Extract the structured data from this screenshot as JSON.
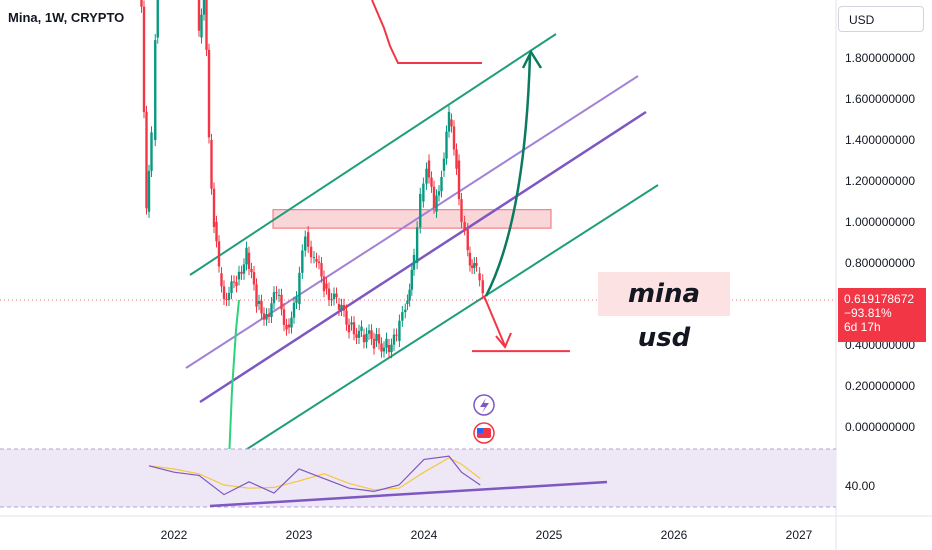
{
  "header": {
    "symbol": "Mina, 1W, CRYPTO"
  },
  "scale": {
    "currency": "USD"
  },
  "price_tag": {
    "price": "0.619178672",
    "change": "−93.81%",
    "countdown": "6d 17h"
  },
  "annotation": {
    "text": "mina usd"
  },
  "colors": {
    "candle_up": "#089981",
    "candle_down": "#f23645",
    "channel_green": "#1e9e7a",
    "channel_purple": "#7e57c2",
    "channel_purple_light": "#a182d6",
    "zone_fill": "#f8c9cc",
    "rsi_band": "#ede7f6",
    "rsi_line": "#7e57c2",
    "rsi_ma": "#f5c842"
  },
  "indicator_icons": [
    "lightning-icon",
    "us-flag-icon"
  ],
  "chart_data": {
    "type": "candlestick",
    "title": "Mina, 1W, CRYPTO",
    "xlabel": "",
    "ylabel": "USD",
    "x_ticks": [
      "2022",
      "2023",
      "2024",
      "2025",
      "2026",
      "2027"
    ],
    "y_ticks": [
      "1.800000000",
      "1.600000000",
      "1.400000000",
      "1.200000000",
      "1.000000000",
      "0.800000000",
      "0.400000000",
      "0.200000000",
      "0.000000000"
    ],
    "ylim": [
      -0.1,
      2.1
    ],
    "last_price": 0.619178672,
    "change_percent": -93.81,
    "resistance_zone": [
      0.97,
      1.06
    ],
    "target_level": 1.77,
    "downside_level": 0.37,
    "weekly_closes": [
      {
        "x": 2021.72,
        "c": 2.6
      },
      {
        "x": 2021.78,
        "c": 1.05
      },
      {
        "x": 2021.82,
        "c": 1.4
      },
      {
        "x": 2021.85,
        "c": 1.9
      },
      {
        "x": 2021.87,
        "c": 2.2
      },
      {
        "x": 2021.9,
        "c": 2.6
      },
      {
        "x": 2022.17,
        "c": 2.4
      },
      {
        "x": 2022.2,
        "c": 1.9
      },
      {
        "x": 2022.24,
        "c": 2.2
      },
      {
        "x": 2022.28,
        "c": 1.4
      },
      {
        "x": 2022.32,
        "c": 1.0
      },
      {
        "x": 2022.36,
        "c": 0.75
      },
      {
        "x": 2022.42,
        "c": 0.62
      },
      {
        "x": 2022.5,
        "c": 0.72
      },
      {
        "x": 2022.58,
        "c": 0.85
      },
      {
        "x": 2022.66,
        "c": 0.6
      },
      {
        "x": 2022.74,
        "c": 0.55
      },
      {
        "x": 2022.82,
        "c": 0.64
      },
      {
        "x": 2022.9,
        "c": 0.5
      },
      {
        "x": 2022.98,
        "c": 0.6
      },
      {
        "x": 2023.05,
        "c": 0.95
      },
      {
        "x": 2023.12,
        "c": 0.82
      },
      {
        "x": 2023.2,
        "c": 0.7
      },
      {
        "x": 2023.3,
        "c": 0.6
      },
      {
        "x": 2023.4,
        "c": 0.5
      },
      {
        "x": 2023.5,
        "c": 0.45
      },
      {
        "x": 2023.6,
        "c": 0.42
      },
      {
        "x": 2023.7,
        "c": 0.4
      },
      {
        "x": 2023.78,
        "c": 0.42
      },
      {
        "x": 2023.85,
        "c": 0.6
      },
      {
        "x": 2023.92,
        "c": 0.8
      },
      {
        "x": 2023.97,
        "c": 1.1
      },
      {
        "x": 2024.02,
        "c": 1.3
      },
      {
        "x": 2024.08,
        "c": 1.05
      },
      {
        "x": 2024.14,
        "c": 1.25
      },
      {
        "x": 2024.2,
        "c": 1.5
      },
      {
        "x": 2024.26,
        "c": 1.3
      },
      {
        "x": 2024.3,
        "c": 1.0
      },
      {
        "x": 2024.35,
        "c": 0.85
      },
      {
        "x": 2024.42,
        "c": 0.75
      },
      {
        "x": 2024.47,
        "c": 0.62
      }
    ],
    "rsi": {
      "level_label": "40.00",
      "values": [
        {
          "x": 2021.8,
          "v": 52
        },
        {
          "x": 2022.0,
          "v": 48
        },
        {
          "x": 2022.2,
          "v": 46
        },
        {
          "x": 2022.4,
          "v": 34
        },
        {
          "x": 2022.6,
          "v": 42
        },
        {
          "x": 2022.8,
          "v": 35
        },
        {
          "x": 2023.0,
          "v": 50
        },
        {
          "x": 2023.2,
          "v": 44
        },
        {
          "x": 2023.4,
          "v": 38
        },
        {
          "x": 2023.6,
          "v": 36
        },
        {
          "x": 2023.8,
          "v": 40
        },
        {
          "x": 2024.0,
          "v": 56
        },
        {
          "x": 2024.2,
          "v": 58
        },
        {
          "x": 2024.3,
          "v": 48
        },
        {
          "x": 2024.45,
          "v": 40
        }
      ]
    }
  }
}
